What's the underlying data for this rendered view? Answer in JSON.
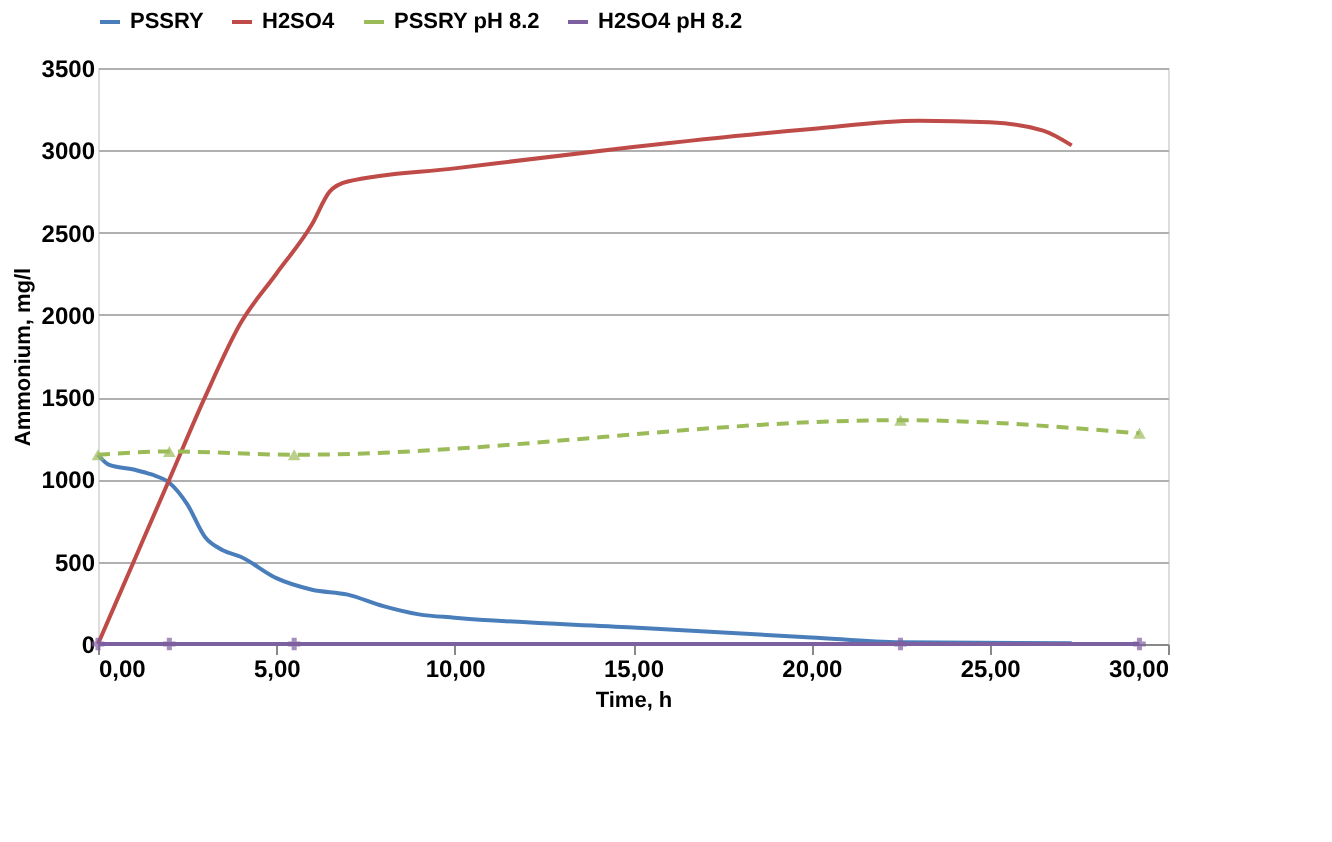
{
  "chart_data": {
    "type": "line",
    "xlabel": "Time, h",
    "ylabel": "Ammonium, mg/l",
    "xlim": [
      0,
      30
    ],
    "xticks": [
      {
        "value": 0,
        "label": "0,00"
      },
      {
        "value": 5,
        "label": "5,00"
      },
      {
        "value": 10,
        "label": "10,00"
      },
      {
        "value": 15,
        "label": "15,00"
      },
      {
        "value": 20,
        "label": "20,00"
      },
      {
        "value": 25,
        "label": "25,00"
      },
      {
        "value": 30,
        "label": "30,00"
      }
    ],
    "ylim": [
      0,
      3500
    ],
    "yticks": [
      0,
      500,
      1000,
      1500,
      2000,
      2500,
      3000,
      3500
    ],
    "grid": "y",
    "legend": "top",
    "series": [
      {
        "name": "PSSRY",
        "color": "#4a7ebb",
        "marker": "none",
        "line_style": "solid",
        "x": [
          0,
          0.3,
          1,
          1.5,
          2,
          2.5,
          3,
          3.5,
          4,
          5,
          6,
          7,
          8,
          9,
          10,
          15,
          20,
          22.5,
          27.3
        ],
        "values": [
          1150,
          1090,
          1060,
          1030,
          980,
          850,
          650,
          570,
          530,
          400,
          330,
          300,
          230,
          180,
          160,
          100,
          40,
          10,
          5
        ]
      },
      {
        "name": "H2SO4",
        "color": "#be4b48",
        "marker": "none",
        "line_style": "solid",
        "x": [
          0,
          1,
          2,
          3,
          4,
          5,
          6,
          6.5,
          7,
          10,
          15,
          20,
          23,
          25,
          26.5,
          27.3
        ],
        "values": [
          0,
          500,
          1000,
          1500,
          1950,
          2250,
          2550,
          2750,
          2810,
          2890,
          3020,
          3130,
          3180,
          3170,
          3120,
          3030
        ]
      },
      {
        "name": "PSSRY pH 8.2",
        "color": "#9bbb59",
        "marker": "triangle",
        "line_style": "dashed",
        "x": [
          0,
          2,
          5.5,
          22.5,
          29.2
        ],
        "values": [
          1150,
          1170,
          1150,
          1360,
          1280
        ]
      },
      {
        "name": "H2SO4 pH 8.2",
        "color": "#7d60a0",
        "marker": "cross",
        "line_style": "solid",
        "x": [
          0,
          2,
          5.5,
          22.5,
          29.2
        ],
        "values": [
          0,
          0,
          0,
          0,
          0
        ]
      }
    ]
  }
}
